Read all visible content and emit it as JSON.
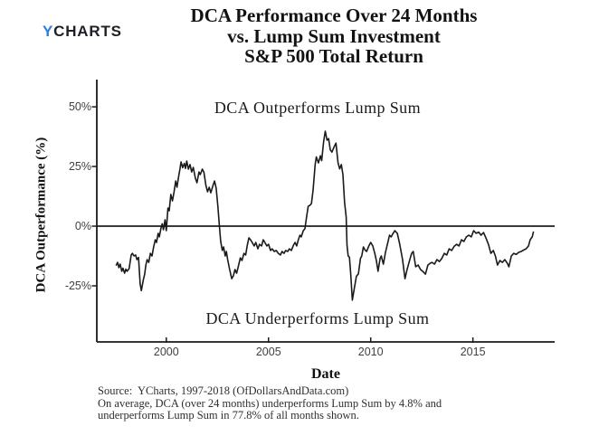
{
  "logo": {
    "y_letter": "Y",
    "charts_text": "CHARTS"
  },
  "title": {
    "line1": "DCA Performance Over 24 Months",
    "line2": "vs. Lump Sum Investment",
    "line3": "S&P 500 Total Return"
  },
  "caption": {
    "line1": "Source:  YCharts, 1997-2018 (OfDollarsAndData.com)",
    "line2": "On average, DCA (over 24 months) underperforms Lump Sum by 4.8% and",
    "line3": "underperforms Lump Sum in 77.8% of all months shown."
  },
  "colors": {
    "line": "#1a1a1a",
    "axis": "#1a1a1a",
    "zero_line": "#3a3a3a",
    "tick_label": "#404040",
    "logo_blue": "#2e7ce0",
    "logo_dark": "#1d2026",
    "background": "#ffffff"
  },
  "chart_data": {
    "type": "line",
    "title": "DCA Performance Over 24 Months vs. Lump Sum Investment S&P 500 Total Return",
    "xlabel": "Date",
    "ylabel": "DCA Outperformance (%)",
    "xlim": [
      1996.6,
      2019.0
    ],
    "ylim": [
      -48.5,
      61.4
    ],
    "grid": false,
    "legend": "none",
    "ref_line_y": 0,
    "x_ticks": [
      {
        "label": "2000",
        "value": 2000
      },
      {
        "label": "2005",
        "value": 2005
      },
      {
        "label": "2010",
        "value": 2010
      },
      {
        "label": "2015",
        "value": 2015
      }
    ],
    "y_ticks": [
      {
        "label": "50%",
        "value": 50
      },
      {
        "label": "25%",
        "value": 25
      },
      {
        "label": "0%",
        "value": 0
      },
      {
        "label": "-25%",
        "value": -25
      }
    ],
    "annotations": [
      {
        "text": "DCA Outperforms Lump Sum",
        "x": 2007.4,
        "y": 49.6
      },
      {
        "text": "DCA Underperforms Lump Sum",
        "x": 2007.4,
        "y": -38.6
      }
    ],
    "series": [
      {
        "name": "DCA outperformance vs Lump Sum (%)",
        "points": [
          [
            1997.55,
            -16.3
          ],
          [
            1997.62,
            -15.2
          ],
          [
            1997.68,
            -17.4
          ],
          [
            1997.74,
            -15.9
          ],
          [
            1997.82,
            -18.9
          ],
          [
            1997.88,
            -17.6
          ],
          [
            1997.96,
            -19.7
          ],
          [
            1998.02,
            -18.0
          ],
          [
            1998.08,
            -18.9
          ],
          [
            1998.18,
            -17.8
          ],
          [
            1998.28,
            -12.1
          ],
          [
            1998.34,
            -11.4
          ],
          [
            1998.42,
            -12.5
          ],
          [
            1998.5,
            -12.1
          ],
          [
            1998.56,
            -14.0
          ],
          [
            1998.64,
            -13.1
          ],
          [
            1998.72,
            -24.2
          ],
          [
            1998.78,
            -27.0
          ],
          [
            1998.88,
            -22.3
          ],
          [
            1998.94,
            -20.1
          ],
          [
            1999.0,
            -16.3
          ],
          [
            1999.06,
            -14.0
          ],
          [
            1999.14,
            -15.2
          ],
          [
            1999.22,
            -11.4
          ],
          [
            1999.3,
            -12.5
          ],
          [
            1999.38,
            -8.7
          ],
          [
            1999.46,
            -5.7
          ],
          [
            1999.52,
            -6.8
          ],
          [
            1999.6,
            -3.0
          ],
          [
            1999.66,
            -4.5
          ],
          [
            1999.74,
            -0.8
          ],
          [
            1999.8,
            1.0
          ],
          [
            1999.86,
            -1.5
          ],
          [
            1999.94,
            2.7
          ],
          [
            2000.0,
            -1.9
          ],
          [
            2000.08,
            7.6
          ],
          [
            2000.14,
            6.4
          ],
          [
            2000.22,
            13.3
          ],
          [
            2000.3,
            10.6
          ],
          [
            2000.38,
            14.4
          ],
          [
            2000.46,
            18.9
          ],
          [
            2000.52,
            16.3
          ],
          [
            2000.6,
            20.8
          ],
          [
            2000.66,
            23.5
          ],
          [
            2000.72,
            26.9
          ],
          [
            2000.8,
            24.5
          ],
          [
            2000.88,
            26.3
          ],
          [
            2000.94,
            24.2
          ],
          [
            2001.0,
            27.3
          ],
          [
            2001.08,
            23.9
          ],
          [
            2001.16,
            25.8
          ],
          [
            2001.24,
            22.7
          ],
          [
            2001.32,
            24.6
          ],
          [
            2001.42,
            20.1
          ],
          [
            2001.5,
            18.2
          ],
          [
            2001.6,
            22.7
          ],
          [
            2001.66,
            21.6
          ],
          [
            2001.76,
            23.9
          ],
          [
            2001.84,
            22.5
          ],
          [
            2001.94,
            17.0
          ],
          [
            2002.02,
            14.4
          ],
          [
            2002.1,
            16.3
          ],
          [
            2002.18,
            14.0
          ],
          [
            2002.28,
            17.0
          ],
          [
            2002.36,
            18.9
          ],
          [
            2002.44,
            15.9
          ],
          [
            2002.52,
            8.7
          ],
          [
            2002.6,
            0.0
          ],
          [
            2002.66,
            -6.4
          ],
          [
            2002.74,
            -10.2
          ],
          [
            2002.8,
            -8.7
          ],
          [
            2002.88,
            -12.5
          ],
          [
            2002.94,
            -10.6
          ],
          [
            2003.0,
            -14.0
          ],
          [
            2003.1,
            -18.2
          ],
          [
            2003.2,
            -22.0
          ],
          [
            2003.28,
            -20.8
          ],
          [
            2003.36,
            -18.2
          ],
          [
            2003.44,
            -19.7
          ],
          [
            2003.52,
            -17.0
          ],
          [
            2003.62,
            -13.3
          ],
          [
            2003.7,
            -14.4
          ],
          [
            2003.8,
            -11.4
          ],
          [
            2003.88,
            -12.1
          ],
          [
            2003.96,
            -8.0
          ],
          [
            2004.04,
            -4.9
          ],
          [
            2004.12,
            -5.7
          ],
          [
            2004.2,
            -6.8
          ],
          [
            2004.3,
            -8.3
          ],
          [
            2004.38,
            -6.8
          ],
          [
            2004.48,
            -9.5
          ],
          [
            2004.56,
            -7.6
          ],
          [
            2004.66,
            -8.3
          ],
          [
            2004.74,
            -5.7
          ],
          [
            2004.82,
            -6.8
          ],
          [
            2004.92,
            -8.3
          ],
          [
            2005.0,
            -7.6
          ],
          [
            2005.1,
            -10.2
          ],
          [
            2005.18,
            -9.5
          ],
          [
            2005.28,
            -10.6
          ],
          [
            2005.38,
            -10.2
          ],
          [
            2005.48,
            -11.4
          ],
          [
            2005.58,
            -12.1
          ],
          [
            2005.66,
            -10.6
          ],
          [
            2005.76,
            -11.4
          ],
          [
            2005.84,
            -10.2
          ],
          [
            2005.94,
            -10.6
          ],
          [
            2006.02,
            -9.5
          ],
          [
            2006.12,
            -10.2
          ],
          [
            2006.22,
            -8.0
          ],
          [
            2006.3,
            -6.8
          ],
          [
            2006.38,
            -8.3
          ],
          [
            2006.46,
            -5.7
          ],
          [
            2006.54,
            -3.8
          ],
          [
            2006.6,
            -4.5
          ],
          [
            2006.7,
            -1.9
          ],
          [
            2006.78,
            -1.1
          ],
          [
            2006.86,
            3.8
          ],
          [
            2006.94,
            8.3
          ],
          [
            2007.02,
            8.7
          ],
          [
            2007.1,
            9.5
          ],
          [
            2007.18,
            15.0
          ],
          [
            2007.28,
            25.8
          ],
          [
            2007.34,
            29.0
          ],
          [
            2007.44,
            26.5
          ],
          [
            2007.54,
            29.5
          ],
          [
            2007.6,
            27.5
          ],
          [
            2007.7,
            35.5
          ],
          [
            2007.78,
            39.8
          ],
          [
            2007.86,
            36.0
          ],
          [
            2007.94,
            36.7
          ],
          [
            2008.02,
            32.0
          ],
          [
            2008.1,
            31.0
          ],
          [
            2008.2,
            33.0
          ],
          [
            2008.3,
            34.8
          ],
          [
            2008.4,
            26.5
          ],
          [
            2008.48,
            24.0
          ],
          [
            2008.56,
            25.8
          ],
          [
            2008.64,
            21.6
          ],
          [
            2008.72,
            10.0
          ],
          [
            2008.8,
            3.8
          ],
          [
            2008.84,
            -8.0
          ],
          [
            2008.9,
            -12.5
          ],
          [
            2008.96,
            -13.0
          ],
          [
            2009.02,
            -20.0
          ],
          [
            2009.1,
            -31.0
          ],
          [
            2009.2,
            -26.0
          ],
          [
            2009.3,
            -21.0
          ],
          [
            2009.4,
            -20.0
          ],
          [
            2009.5,
            -13.5
          ],
          [
            2009.56,
            -12.5
          ],
          [
            2009.64,
            -8.7
          ],
          [
            2009.72,
            -10.0
          ],
          [
            2009.8,
            -10.6
          ],
          [
            2009.9,
            -8.5
          ],
          [
            2010.0,
            -6.8
          ],
          [
            2010.1,
            -8.3
          ],
          [
            2010.2,
            -11.4
          ],
          [
            2010.28,
            -14.5
          ],
          [
            2010.36,
            -18.9
          ],
          [
            2010.46,
            -13.5
          ],
          [
            2010.52,
            -12.5
          ],
          [
            2010.62,
            -15.9
          ],
          [
            2010.72,
            -11.0
          ],
          [
            2010.82,
            -7.5
          ],
          [
            2010.92,
            -3.8
          ],
          [
            2011.0,
            -4.5
          ],
          [
            2011.1,
            -3.0
          ],
          [
            2011.18,
            -1.9
          ],
          [
            2011.3,
            -3.0
          ],
          [
            2011.42,
            -7.6
          ],
          [
            2011.56,
            -14.0
          ],
          [
            2011.68,
            -22.0
          ],
          [
            2011.78,
            -18.2
          ],
          [
            2011.88,
            -15.0
          ],
          [
            2012.0,
            -11.4
          ],
          [
            2012.08,
            -10.6
          ],
          [
            2012.2,
            -17.0
          ],
          [
            2012.32,
            -16.3
          ],
          [
            2012.44,
            -18.2
          ],
          [
            2012.56,
            -19.0
          ],
          [
            2012.68,
            -20.1
          ],
          [
            2012.8,
            -16.3
          ],
          [
            2012.92,
            -15.5
          ],
          [
            2013.0,
            -15.2
          ],
          [
            2013.12,
            -15.9
          ],
          [
            2013.24,
            -14.0
          ],
          [
            2013.36,
            -14.8
          ],
          [
            2013.48,
            -13.5
          ],
          [
            2013.6,
            -11.4
          ],
          [
            2013.72,
            -12.1
          ],
          [
            2013.84,
            -9.5
          ],
          [
            2013.96,
            -10.2
          ],
          [
            2014.08,
            -8.5
          ],
          [
            2014.2,
            -7.6
          ],
          [
            2014.32,
            -8.3
          ],
          [
            2014.44,
            -5.7
          ],
          [
            2014.56,
            -6.4
          ],
          [
            2014.68,
            -4.5
          ],
          [
            2014.8,
            -3.8
          ],
          [
            2014.92,
            -4.5
          ],
          [
            2015.04,
            -1.9
          ],
          [
            2015.16,
            -3.0
          ],
          [
            2015.28,
            -2.5
          ],
          [
            2015.4,
            -3.8
          ],
          [
            2015.52,
            -2.7
          ],
          [
            2015.64,
            -5.0
          ],
          [
            2015.76,
            -7.6
          ],
          [
            2015.88,
            -11.4
          ],
          [
            2016.0,
            -10.2
          ],
          [
            2016.1,
            -12.5
          ],
          [
            2016.2,
            -16.3
          ],
          [
            2016.32,
            -14.4
          ],
          [
            2016.44,
            -15.2
          ],
          [
            2016.56,
            -14.0
          ],
          [
            2016.68,
            -15.5
          ],
          [
            2016.76,
            -17.0
          ],
          [
            2016.88,
            -12.5
          ],
          [
            2017.0,
            -11.4
          ],
          [
            2017.12,
            -11.8
          ],
          [
            2017.24,
            -11.0
          ],
          [
            2017.36,
            -10.6
          ],
          [
            2017.48,
            -10.0
          ],
          [
            2017.6,
            -9.5
          ],
          [
            2017.72,
            -8.3
          ],
          [
            2017.8,
            -5.7
          ],
          [
            2017.9,
            -4.5
          ],
          [
            2017.96,
            -2.5
          ]
        ]
      }
    ]
  }
}
